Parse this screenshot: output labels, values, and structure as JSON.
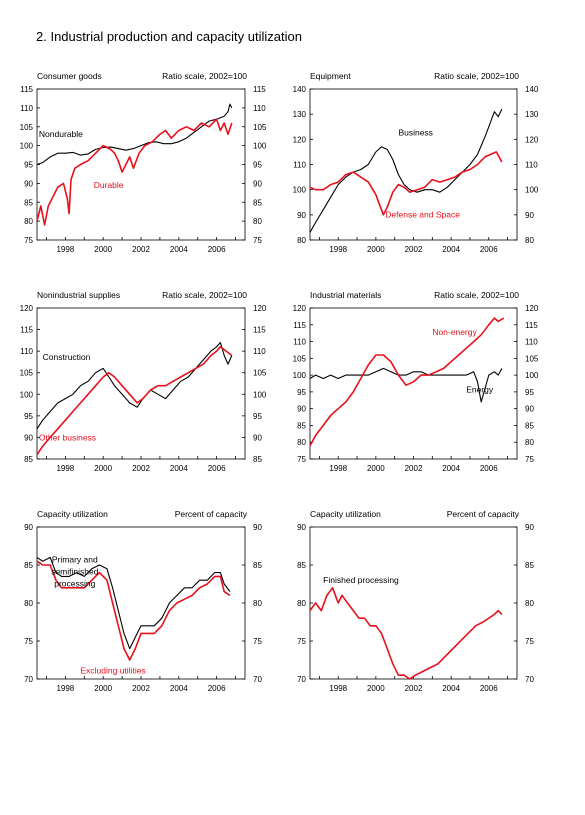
{
  "page": {
    "title": "2.  Industrial production and capacity utilization"
  },
  "colors": {
    "black_series": "#000000",
    "red_series": "#e8101c"
  },
  "chart_data": [
    {
      "type": "line",
      "title": "Consumer goods",
      "scale_note": "Ratio scale, 2002=100",
      "ylim": [
        75,
        115
      ],
      "yticks": [
        75,
        80,
        85,
        90,
        95,
        100,
        105,
        110,
        115
      ],
      "xlim": [
        1996.5,
        2007.5
      ],
      "xticks": [
        1998,
        2000,
        2002,
        2004,
        2006
      ],
      "series": [
        {
          "name": "Nondurable",
          "color": "black",
          "label_at": [
            1996.6,
            102.3
          ],
          "x": [
            1996.5,
            1996.8,
            1997.2,
            1997.6,
            1998.0,
            1998.4,
            1998.8,
            1999.2,
            1999.6,
            2000.0,
            2000.4,
            2000.8,
            2001.2,
            2001.6,
            2002.0,
            2002.4,
            2002.8,
            2003.2,
            2003.6,
            2004.0,
            2004.4,
            2004.8,
            2005.2,
            2005.6,
            2006.0,
            2006.4,
            2006.6,
            2006.7,
            2006.8
          ],
          "y": [
            95,
            95.5,
            97,
            98,
            98,
            98.2,
            97.5,
            97.8,
            99,
            99.5,
            99.6,
            99.2,
            98.8,
            99.2,
            100,
            100.8,
            101,
            100.5,
            100.5,
            101,
            102,
            103.5,
            105,
            106.5,
            107,
            107.8,
            109,
            111,
            110
          ]
        },
        {
          "name": "Durable",
          "color": "red",
          "label_at": [
            1999.5,
            88.8
          ],
          "x": [
            1996.5,
            1996.7,
            1996.9,
            1997.1,
            1997.3,
            1997.6,
            1997.9,
            1998.1,
            1998.2,
            1998.3,
            1998.5,
            1998.8,
            1999.2,
            1999.6,
            2000.0,
            2000.4,
            2000.6,
            2000.8,
            2001.0,
            2001.2,
            2001.4,
            2001.6,
            2001.9,
            2002.2,
            2002.6,
            2003.0,
            2003.3,
            2003.6,
            2004.0,
            2004.4,
            2004.8,
            2005.2,
            2005.6,
            2006.0,
            2006.2,
            2006.4,
            2006.6,
            2006.8
          ],
          "y": [
            80,
            84,
            79,
            84,
            86,
            89,
            90,
            86,
            82,
            91,
            94,
            95,
            96,
            98,
            100,
            99,
            98,
            96,
            93,
            95,
            97,
            94,
            98,
            100,
            101,
            103,
            104,
            102,
            104,
            105,
            104,
            106,
            105,
            107,
            104,
            106,
            103,
            106
          ]
        }
      ]
    },
    {
      "type": "line",
      "title": "Equipment",
      "scale_note": "Ratio scale, 2002=100",
      "ylim": [
        80,
        140
      ],
      "yticks": [
        80,
        90,
        100,
        110,
        120,
        130,
        140
      ],
      "xlim": [
        1996.5,
        2007.5
      ],
      "xticks": [
        1998,
        2000,
        2002,
        2004,
        2006
      ],
      "series": [
        {
          "name": "Business",
          "color": "black",
          "label_at": [
            2001.2,
            121.5
          ],
          "x": [
            1996.5,
            1996.8,
            1997.2,
            1997.6,
            1998.0,
            1998.4,
            1998.8,
            1999.2,
            1999.6,
            2000.0,
            2000.3,
            2000.6,
            2000.9,
            2001.2,
            2001.5,
            2001.8,
            2002.2,
            2002.6,
            2003.0,
            2003.4,
            2003.8,
            2004.2,
            2004.6,
            2005.0,
            2005.4,
            2005.8,
            2006.1,
            2006.3,
            2006.5,
            2006.7
          ],
          "y": [
            83,
            87,
            92,
            97,
            102,
            105,
            107,
            108,
            110,
            115,
            117,
            116,
            112,
            106,
            102,
            100,
            99,
            100,
            100,
            99,
            101,
            104,
            107,
            110,
            114,
            121,
            127,
            131,
            129,
            132
          ]
        },
        {
          "name": "Defense and Space",
          "color": "red",
          "label_at": [
            2000.5,
            89
          ],
          "x": [
            1996.5,
            1996.8,
            1997.2,
            1997.6,
            1998.0,
            1998.4,
            1998.8,
            1999.2,
            1999.6,
            2000.0,
            2000.2,
            2000.4,
            2000.6,
            2000.9,
            2001.2,
            2001.5,
            2001.8,
            2002.2,
            2002.6,
            2003.0,
            2003.4,
            2003.8,
            2004.2,
            2004.6,
            2005.0,
            2005.4,
            2005.8,
            2006.1,
            2006.4,
            2006.7
          ],
          "y": [
            101,
            100,
            100,
            102,
            103,
            106,
            107,
            105,
            103,
            98,
            94,
            90,
            93,
            99,
            102,
            101,
            99,
            100,
            101,
            104,
            103,
            104,
            105,
            107,
            108,
            110,
            113,
            114,
            115,
            111
          ]
        }
      ]
    },
    {
      "type": "line",
      "title": "Nonindustrial supplies",
      "scale_note": "Ratio scale, 2002=100",
      "ylim": [
        85,
        120
      ],
      "yticks": [
        85,
        90,
        95,
        100,
        105,
        110,
        115,
        120
      ],
      "xlim": [
        1996.5,
        2007.5
      ],
      "xticks": [
        1998,
        2000,
        2002,
        2004,
        2006
      ],
      "series": [
        {
          "name": "Construction",
          "color": "black",
          "label_at": [
            1996.8,
            108
          ],
          "x": [
            1996.5,
            1996.8,
            1997.2,
            1997.6,
            1998.0,
            1998.4,
            1998.8,
            1999.2,
            1999.6,
            2000.0,
            2000.3,
            2000.6,
            2001.0,
            2001.4,
            2001.8,
            2002.1,
            2002.5,
            2002.9,
            2003.3,
            2003.7,
            2004.1,
            2004.5,
            2004.9,
            2005.3,
            2005.7,
            2006.0,
            2006.2,
            2006.4,
            2006.6,
            2006.8
          ],
          "y": [
            92,
            94,
            96,
            98,
            99,
            100,
            102,
            103,
            105,
            106,
            104,
            102,
            100,
            98,
            97,
            99,
            101,
            100,
            99,
            101,
            103,
            104,
            106,
            108,
            110,
            111,
            112,
            109,
            107,
            109
          ]
        },
        {
          "name": "Other business",
          "color": "red",
          "label_at": [
            1996.6,
            89.3
          ],
          "x": [
            1996.5,
            1996.8,
            1997.2,
            1997.6,
            1998.0,
            1998.4,
            1998.8,
            1999.2,
            1999.6,
            2000.0,
            2000.3,
            2000.6,
            2001.0,
            2001.4,
            2001.8,
            2002.1,
            2002.5,
            2002.9,
            2003.3,
            2003.7,
            2004.1,
            2004.5,
            2004.9,
            2005.3,
            2005.7,
            2006.0,
            2006.2,
            2006.5,
            2006.8
          ],
          "y": [
            86,
            88,
            90,
            92,
            94,
            96,
            98,
            100,
            102,
            104,
            105,
            104,
            102,
            100,
            98,
            99,
            101,
            102,
            102,
            103,
            104,
            105,
            106,
            107,
            109,
            110,
            111,
            110,
            109
          ]
        }
      ]
    },
    {
      "type": "line",
      "title": "Industrial materials",
      "scale_note": "Ratio scale, 2002=100",
      "ylim": [
        75,
        120
      ],
      "yticks": [
        75,
        80,
        85,
        90,
        95,
        100,
        105,
        110,
        115,
        120
      ],
      "xlim": [
        1996.5,
        2007.5
      ],
      "xticks": [
        1998,
        2000,
        2002,
        2004,
        2006
      ],
      "series": [
        {
          "name": "Non-energy",
          "color": "red",
          "label_at": [
            2003.0,
            112
          ],
          "x": [
            1996.5,
            1996.8,
            1997.2,
            1997.6,
            1998.0,
            1998.4,
            1998.8,
            1999.2,
            1999.6,
            2000.0,
            2000.4,
            2000.8,
            2001.2,
            2001.6,
            2002.0,
            2002.4,
            2002.8,
            2003.2,
            2003.6,
            2004.0,
            2004.4,
            2004.8,
            2005.2,
            2005.6,
            2006.0,
            2006.3,
            2006.5,
            2006.8
          ],
          "y": [
            79,
            82,
            85,
            88,
            90,
            92,
            95,
            99,
            103,
            106,
            106,
            104,
            100,
            97,
            98,
            100,
            100,
            101,
            102,
            104,
            106,
            108,
            110,
            112,
            115,
            117,
            116,
            117
          ]
        },
        {
          "name": "Energy",
          "color": "black",
          "label_at": [
            2004.8,
            94.8
          ],
          "x": [
            1996.5,
            1996.8,
            1997.2,
            1997.6,
            1998.0,
            1998.4,
            1998.8,
            1999.2,
            1999.6,
            2000.0,
            2000.4,
            2000.8,
            2001.2,
            2001.6,
            2002.0,
            2002.4,
            2002.8,
            2003.2,
            2003.6,
            2004.0,
            2004.4,
            2004.8,
            2005.2,
            2005.4,
            2005.6,
            2005.8,
            2006.0,
            2006.3,
            2006.5,
            2006.7
          ],
          "y": [
            99,
            100,
            99,
            100,
            99,
            100,
            100,
            100,
            100,
            101,
            102,
            101,
            100,
            100,
            101,
            101,
            100,
            100,
            100,
            100,
            100,
            100,
            101,
            98,
            92,
            96,
            100,
            101,
            100,
            102
          ]
        }
      ]
    },
    {
      "type": "line",
      "title": "Capacity utilization",
      "scale_note": "Percent of capacity",
      "ylim": [
        70,
        90
      ],
      "yticks": [
        70,
        75,
        80,
        85,
        90
      ],
      "xlim": [
        1996.5,
        2007.5
      ],
      "xticks": [
        1998,
        2000,
        2002,
        2004,
        2006
      ],
      "series": [
        {
          "name": "Primary and semifinished processing",
          "color": "black",
          "label_at": [
            1998.5,
            85.3
          ],
          "label_lines": [
            "Primary and",
            "semifinished",
            "processing"
          ],
          "x": [
            1996.5,
            1996.8,
            1997.2,
            1997.5,
            1997.8,
            1998.2,
            1998.6,
            1999.0,
            1999.4,
            1999.8,
            2000.2,
            2000.5,
            2000.8,
            2001.1,
            2001.4,
            2001.7,
            2002.0,
            2002.3,
            2002.7,
            2003.1,
            2003.5,
            2003.9,
            2004.3,
            2004.7,
            2005.1,
            2005.5,
            2005.9,
            2006.2,
            2006.4,
            2006.7
          ],
          "y": [
            86,
            85.5,
            86,
            84,
            83.5,
            83.5,
            84,
            83.5,
            84.5,
            85,
            84.5,
            82,
            79,
            76,
            74,
            75.5,
            77,
            77,
            77,
            78,
            80,
            81,
            82,
            82,
            83,
            83,
            84,
            84,
            82.5,
            81.5
          ]
        },
        {
          "name": "Excluding utilities",
          "color": "red",
          "label_at": [
            1998.8,
            70.7
          ],
          "x": [
            1996.5,
            1996.8,
            1997.2,
            1997.5,
            1997.8,
            1998.2,
            1998.6,
            1999.0,
            1999.4,
            1999.8,
            2000.2,
            2000.5,
            2000.8,
            2001.1,
            2001.4,
            2001.7,
            2002.0,
            2002.3,
            2002.7,
            2003.1,
            2003.5,
            2003.9,
            2004.3,
            2004.7,
            2005.1,
            2005.5,
            2005.9,
            2006.2,
            2006.4,
            2006.7
          ],
          "y": [
            85.5,
            85,
            85,
            83,
            82,
            82,
            82,
            82,
            83,
            84,
            83,
            80,
            77,
            74,
            72.5,
            74,
            76,
            76,
            76,
            77,
            79,
            80,
            80.5,
            81,
            82,
            82.5,
            83.5,
            83.5,
            81.5,
            81
          ]
        }
      ]
    },
    {
      "type": "line",
      "title": "Capacity utilization",
      "scale_note": "Percent of capacity",
      "ylim": [
        70,
        90
      ],
      "yticks": [
        70,
        75,
        80,
        85,
        90
      ],
      "xlim": [
        1996.5,
        2007.5
      ],
      "xticks": [
        1998,
        2000,
        2002,
        2004,
        2006
      ],
      "series": [
        {
          "name": "Finished processing",
          "color": "red",
          "label_at": [
            1997.2,
            82.6
          ],
          "label_color": "black",
          "x": [
            1996.5,
            1996.8,
            1997.1,
            1997.4,
            1997.7,
            1998.0,
            1998.2,
            1998.5,
            1998.8,
            1999.1,
            1999.4,
            1999.7,
            2000.0,
            2000.3,
            2000.6,
            2000.9,
            2001.2,
            2001.5,
            2001.8,
            2002.1,
            2002.5,
            2002.9,
            2003.3,
            2003.7,
            2004.1,
            2004.5,
            2004.9,
            2005.3,
            2005.7,
            2006.0,
            2006.3,
            2006.5,
            2006.7
          ],
          "y": [
            79,
            80,
            79,
            81,
            82,
            80,
            81,
            80,
            79,
            78,
            78,
            77,
            77,
            76,
            74,
            72,
            70.5,
            70.5,
            70,
            70.5,
            71,
            71.5,
            72,
            73,
            74,
            75,
            76,
            77,
            77.5,
            78,
            78.5,
            79,
            78.5
          ]
        }
      ]
    }
  ]
}
